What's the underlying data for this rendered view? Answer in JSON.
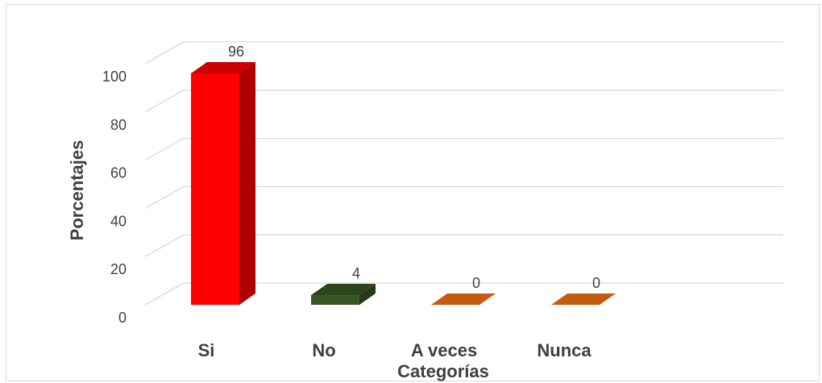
{
  "chart_data": {
    "type": "bar",
    "style": "3d-column",
    "categories": [
      "Si",
      "No",
      "A veces",
      "Nunca"
    ],
    "values": [
      96,
      4,
      0,
      0
    ],
    "data_labels": [
      "96",
      "4",
      "0",
      "0"
    ],
    "bar_colors": [
      "#ff0000",
      "#375623",
      "#c55a11",
      "#c55a11"
    ],
    "title": "",
    "xlabel": "Categorías",
    "ylabel": "Porcentajes",
    "ylim": [
      0,
      100
    ],
    "yticks": [
      "0",
      "20",
      "40",
      "60",
      "80",
      "100"
    ],
    "grid": true,
    "legend": "none"
  }
}
